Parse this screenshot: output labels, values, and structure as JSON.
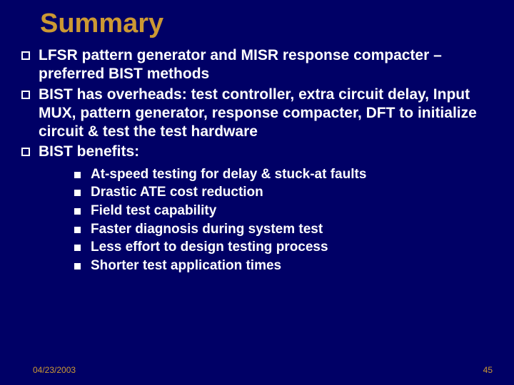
{
  "title": "Summary",
  "bullets": [
    "LFSR pattern generator and MISR response compacter – preferred BIST methods",
    "BIST has overheads: test controller, extra circuit delay, Input MUX, pattern generator, response compacter, DFT to initialize circuit & test the test hardware",
    "BIST benefits:"
  ],
  "subbullets": [
    "At-speed testing for delay & stuck-at faults",
    "Drastic ATE cost reduction",
    "Field test capability",
    "Faster diagnosis during system test",
    "Less effort to design testing process",
    "Shorter test application times"
  ],
  "footer": {
    "date": "04/23/2003",
    "page": "45"
  },
  "colors": {
    "background": "#000066",
    "accent": "#cc9933",
    "text": "#ffffff"
  }
}
